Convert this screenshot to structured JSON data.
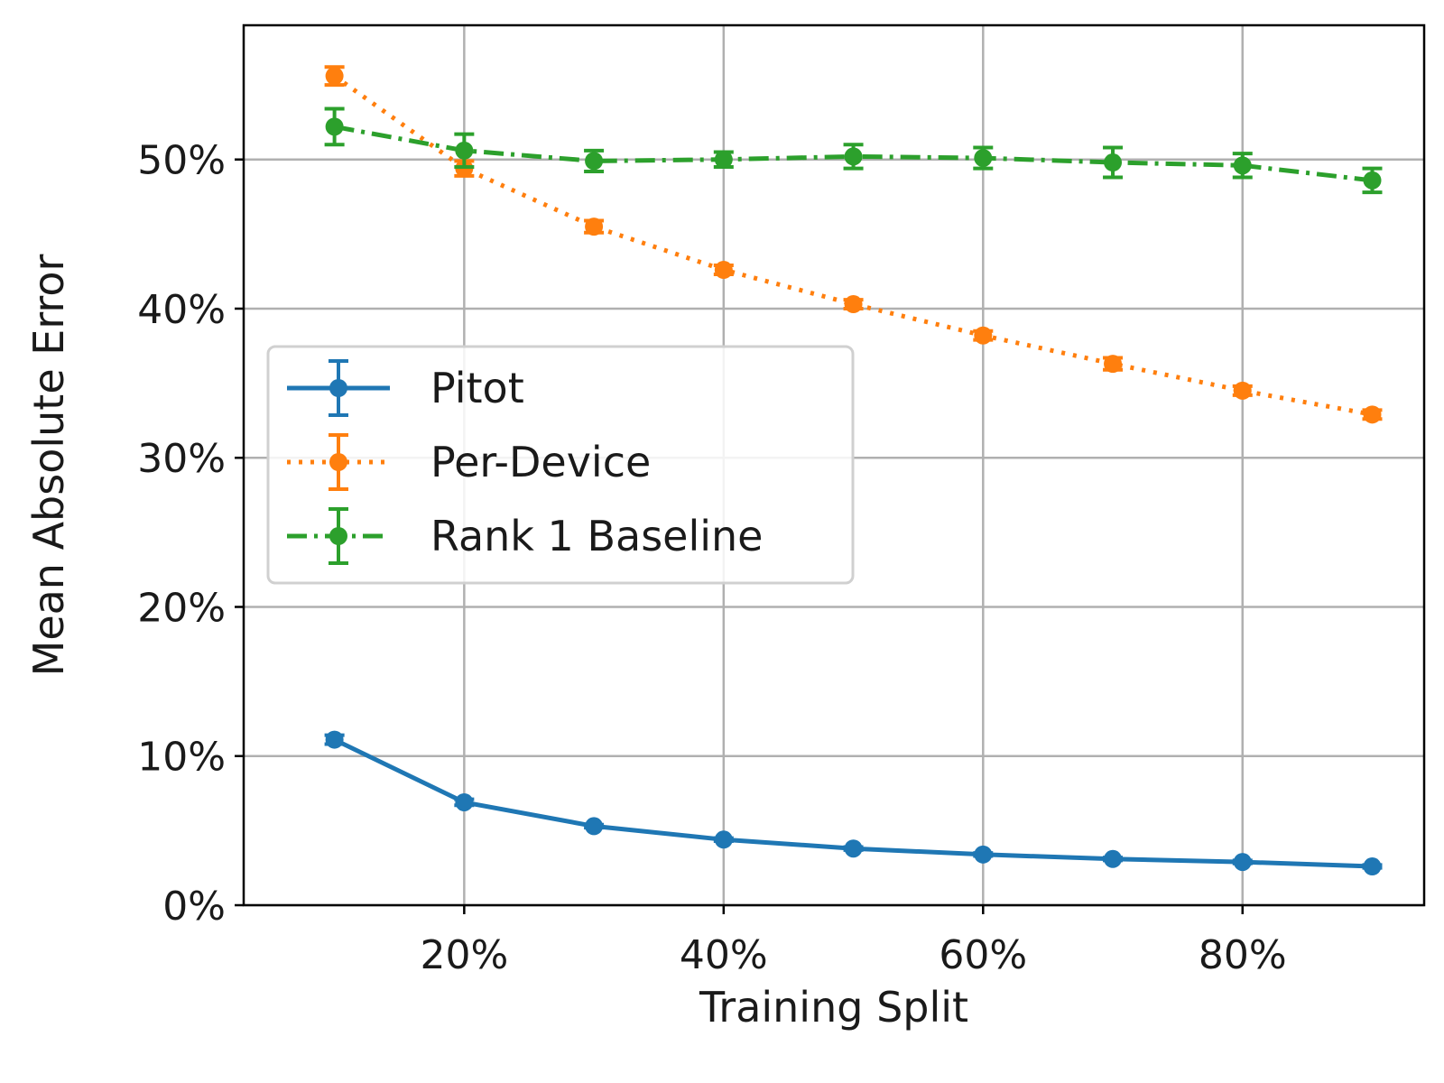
{
  "chart_data": {
    "type": "line",
    "xlabel": "Training Split",
    "ylabel": "Mean Absolute Error",
    "x": [
      10,
      20,
      30,
      40,
      50,
      60,
      70,
      80,
      90
    ],
    "xlim": [
      3,
      94
    ],
    "ylim": [
      0,
      59
    ],
    "xticks": [
      20,
      40,
      60,
      80
    ],
    "yticks": [
      0,
      10,
      20,
      30,
      40,
      50
    ],
    "tick_suffix": "%",
    "grid": true,
    "legend_position": "center-left",
    "series": [
      {
        "name": "Pitot",
        "color": "#1f77b4",
        "line_style": "solid",
        "values": [
          11.1,
          6.9,
          5.3,
          4.4,
          3.8,
          3.4,
          3.1,
          2.9,
          2.6
        ],
        "errors": [
          0.3,
          0.2,
          0.1,
          0.1,
          0.1,
          0.1,
          0.1,
          0.1,
          0.1
        ]
      },
      {
        "name": "Per-Device",
        "color": "#ff7f0e",
        "line_style": "dotted",
        "values": [
          55.6,
          49.4,
          45.5,
          42.6,
          40.3,
          38.2,
          36.3,
          34.5,
          32.9
        ],
        "errors": [
          0.6,
          0.5,
          0.4,
          0.3,
          0.3,
          0.3,
          0.4,
          0.3,
          0.3
        ]
      },
      {
        "name": "Rank 1 Baseline",
        "color": "#2ca02c",
        "line_style": "dashdot",
        "values": [
          52.2,
          50.6,
          49.9,
          50.0,
          50.2,
          50.1,
          49.8,
          49.6,
          48.6
        ],
        "errors": [
          1.2,
          1.1,
          0.7,
          0.5,
          0.8,
          0.7,
          1.0,
          0.8,
          0.8
        ]
      }
    ]
  }
}
